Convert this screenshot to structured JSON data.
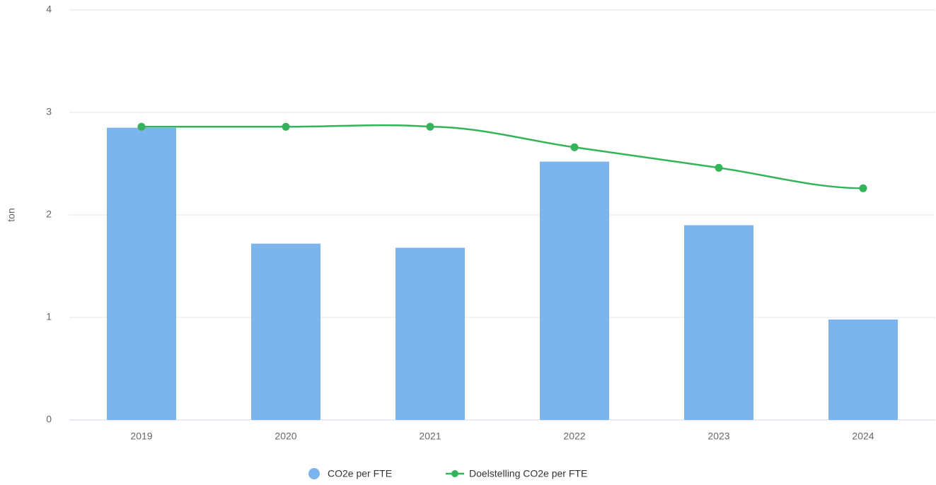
{
  "chart_data": {
    "type": "combo",
    "categories": [
      "2019",
      "2020",
      "2021",
      "2022",
      "2023",
      "2024"
    ],
    "y_axis_label": "ton",
    "ylim": [
      0,
      4
    ],
    "yticks": [
      0,
      1,
      2,
      3,
      4
    ],
    "grid": true,
    "legend": "bottom",
    "series": [
      {
        "name": "CO2e per FTE",
        "type": "column",
        "color": "#7cb5ec",
        "values": [
          2.85,
          1.72,
          1.68,
          2.52,
          1.9,
          0.98
        ]
      },
      {
        "name": "Doelstelling CO2e per FTE",
        "type": "spline",
        "color": "#34b45a",
        "values": [
          2.86,
          2.86,
          2.86,
          2.66,
          2.46,
          2.26
        ]
      }
    ]
  }
}
